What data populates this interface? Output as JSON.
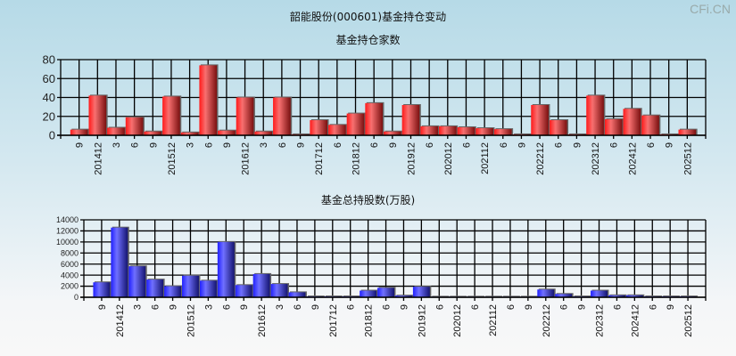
{
  "title": "韶能股份(000601)基金持仓变动",
  "watermark": "CFi.CN",
  "chart_data": [
    {
      "type": "bar",
      "title": "基金持仓家数",
      "categories": [
        "9",
        "201412",
        "3",
        "6",
        "9",
        "201512",
        "3",
        "6",
        "9",
        "201612",
        "3",
        "6",
        "9",
        "201712",
        "6",
        "201812",
        "6",
        "9",
        "201912",
        "6",
        "202012",
        "6",
        "202112",
        "6",
        "9",
        "202212",
        "6",
        "9",
        "202312",
        "6",
        "202412",
        "6",
        "9",
        "202512"
      ],
      "values": [
        6,
        42,
        8,
        19,
        4,
        41,
        3,
        74,
        5,
        40,
        4,
        40,
        1,
        16,
        11,
        23,
        34,
        4,
        32,
        9.5,
        9.5,
        8.5,
        7.5,
        6.5,
        1,
        32,
        16,
        1,
        42,
        17,
        28,
        21,
        1,
        6
      ],
      "ylim": [
        0,
        80
      ],
      "yticks": [
        0,
        20,
        40,
        60,
        80
      ],
      "grid": true,
      "color": "#e8202a"
    },
    {
      "type": "bar",
      "title": "基金总持股数(万股)",
      "categories": [
        "9",
        "201412",
        "3",
        "6",
        "9",
        "201512",
        "3",
        "6",
        "9",
        "201612",
        "3",
        "6",
        "9",
        "201712",
        "6",
        "201812",
        "6",
        "9",
        "201912",
        "6",
        "202012",
        "6",
        "202112",
        "6",
        "9",
        "202212",
        "6",
        "9",
        "202312",
        "6",
        "202412",
        "6",
        "9",
        "202512"
      ],
      "values": [
        2700,
        12600,
        5600,
        3200,
        2000,
        3900,
        3000,
        10000,
        2200,
        4200,
        2400,
        900,
        150,
        150,
        150,
        1200,
        1700,
        300,
        1900,
        100,
        100,
        100,
        100,
        100,
        100,
        1400,
        600,
        150,
        1200,
        350,
        350,
        150,
        150,
        150
      ],
      "ylim": [
        0,
        14000
      ],
      "yticks": [
        0,
        2000,
        4000,
        6000,
        8000,
        10000,
        12000,
        14000
      ],
      "grid": true,
      "color": "#2a2ae8"
    }
  ]
}
